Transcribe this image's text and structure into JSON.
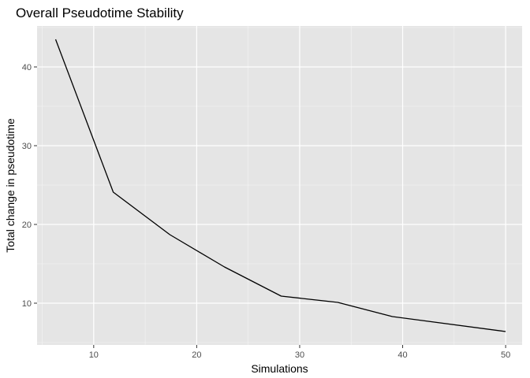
{
  "chart_data": {
    "type": "line",
    "title": "Overall Pseudotime Stability",
    "xlabel": "Simulations",
    "ylabel": "Total change in pseudotime",
    "xlim": [
      4.5,
      51.6
    ],
    "ylim": [
      4.7,
      45.2
    ],
    "x_major_ticks": [
      10,
      20,
      30,
      40,
      50
    ],
    "x_minor_ticks": [
      5,
      15,
      25,
      35,
      45
    ],
    "y_major_ticks": [
      10,
      20,
      30,
      40
    ],
    "y_minor_ticks": [
      5,
      15,
      25,
      35,
      45
    ],
    "x_tick_labels": [
      "10",
      "20",
      "30",
      "40",
      "50"
    ],
    "y_tick_labels": [
      "10",
      "20",
      "30",
      "40"
    ],
    "grid": true,
    "panel_color": "#e5e5e5",
    "grid_color": "#ffffff",
    "line_color": "#000000",
    "series": [
      {
        "x": [
          6.3,
          11.9,
          17.4,
          22.7,
          28.2,
          33.7,
          39.0,
          50.0
        ],
        "y": [
          43.5,
          24.1,
          18.7,
          14.6,
          10.9,
          10.1,
          8.3,
          6.4
        ]
      }
    ]
  }
}
